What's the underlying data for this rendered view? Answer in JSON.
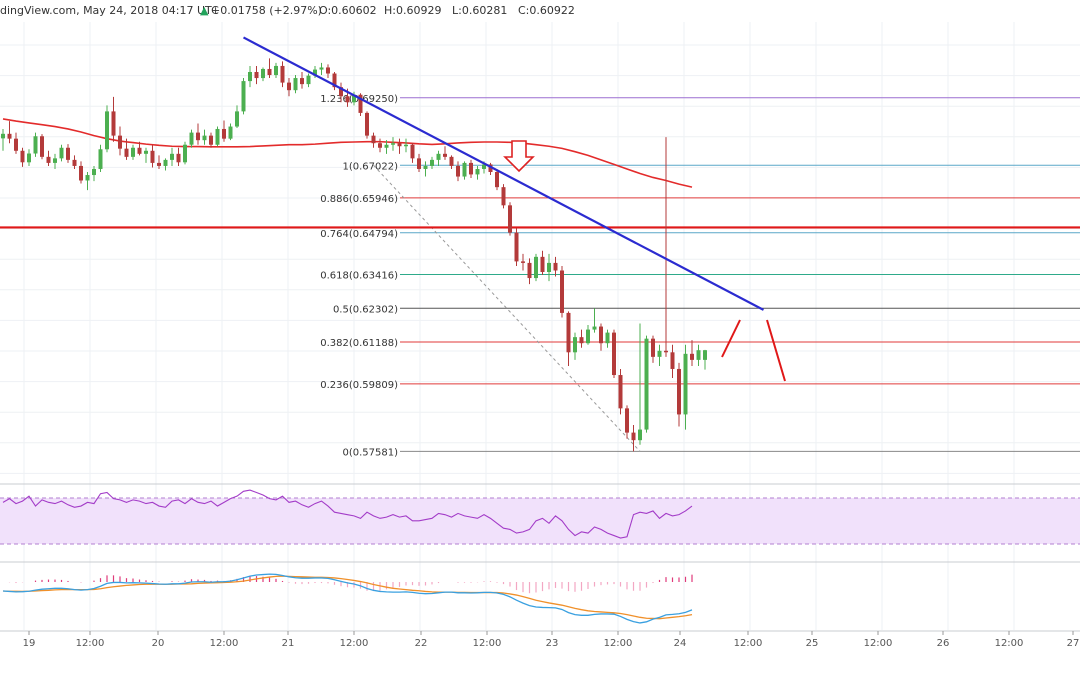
{
  "header": {
    "source": "dingView.com, May 24, 2018 04:17 UTC",
    "change": "+0.01758 (+2.97%)",
    "open": "O:0.60602",
    "high": "H:0.60929",
    "low": "L:0.60281",
    "close": "C:0.60922"
  },
  "colors": {
    "up_candle": "#4caf50",
    "down_candle": "#b33a3a",
    "ma": "#e32b2b",
    "trendline": "#2b2bd0",
    "support": "#e01818",
    "rsi": "#a33cc8",
    "rsi_band": "#f1e1fb",
    "macd": "#3aa0e0",
    "signal": "#f0902a",
    "histogram": "#e03a7a"
  },
  "chart_data": {
    "type": "candlestick",
    "ylim": [
      0.5657,
      0.7175
    ],
    "x_tick_labels": [
      "19",
      "12:00",
      "20",
      "12:00",
      "21",
      "12:00",
      "22",
      "12:00",
      "23",
      "12:00",
      "24",
      "12:00",
      "25",
      "12:00",
      "26",
      "12:00",
      "27"
    ],
    "candles": [
      [
        0.6791,
        0.6822,
        0.675,
        0.6806
      ],
      [
        0.6806,
        0.6848,
        0.6775,
        0.679
      ],
      [
        0.679,
        0.681,
        0.674,
        0.675
      ],
      [
        0.675,
        0.676,
        0.6697,
        0.6712
      ],
      [
        0.6712,
        0.6755,
        0.67,
        0.6741
      ],
      [
        0.6741,
        0.681,
        0.673,
        0.6798
      ],
      [
        0.6798,
        0.6805,
        0.6722,
        0.673
      ],
      [
        0.673,
        0.675,
        0.67,
        0.671
      ],
      [
        0.671,
        0.674,
        0.669,
        0.6725
      ],
      [
        0.6725,
        0.677,
        0.6715,
        0.676
      ],
      [
        0.676,
        0.6772,
        0.671,
        0.672
      ],
      [
        0.672,
        0.6735,
        0.669,
        0.67
      ],
      [
        0.67,
        0.6715,
        0.6642,
        0.6652
      ],
      [
        0.6652,
        0.668,
        0.662,
        0.667
      ],
      [
        0.667,
        0.67,
        0.665,
        0.669
      ],
      [
        0.669,
        0.677,
        0.668,
        0.6755
      ],
      [
        0.6755,
        0.69,
        0.6745,
        0.688
      ],
      [
        0.688,
        0.6928,
        0.678,
        0.68
      ],
      [
        0.68,
        0.683,
        0.6735,
        0.6757
      ],
      [
        0.6757,
        0.679,
        0.672,
        0.673
      ],
      [
        0.673,
        0.677,
        0.672,
        0.676
      ],
      [
        0.676,
        0.678,
        0.6735,
        0.674
      ],
      [
        0.674,
        0.676,
        0.671,
        0.675
      ],
      [
        0.675,
        0.677,
        0.6695,
        0.671
      ],
      [
        0.671,
        0.6735,
        0.669,
        0.67
      ],
      [
        0.67,
        0.6725,
        0.6685,
        0.672
      ],
      [
        0.672,
        0.676,
        0.67,
        0.674
      ],
      [
        0.674,
        0.676,
        0.67,
        0.6712
      ],
      [
        0.6712,
        0.678,
        0.6705,
        0.677
      ],
      [
        0.677,
        0.682,
        0.676,
        0.681
      ],
      [
        0.681,
        0.684,
        0.677,
        0.6785
      ],
      [
        0.6785,
        0.682,
        0.677,
        0.68
      ],
      [
        0.68,
        0.681,
        0.676,
        0.677
      ],
      [
        0.677,
        0.683,
        0.6765,
        0.6822
      ],
      [
        0.6822,
        0.685,
        0.678,
        0.679
      ],
      [
        0.679,
        0.684,
        0.6785,
        0.683
      ],
      [
        0.683,
        0.69,
        0.6825,
        0.688
      ],
      [
        0.688,
        0.699,
        0.687,
        0.698
      ],
      [
        0.698,
        0.703,
        0.696,
        0.701
      ],
      [
        0.701,
        0.703,
        0.697,
        0.699
      ],
      [
        0.699,
        0.7025,
        0.698,
        0.702
      ],
      [
        0.702,
        0.7055,
        0.699,
        0.7
      ],
      [
        0.7,
        0.704,
        0.699,
        0.703
      ],
      [
        0.703,
        0.7045,
        0.696,
        0.6975
      ],
      [
        0.6975,
        0.699,
        0.693,
        0.695
      ],
      [
        0.695,
        0.7,
        0.694,
        0.699
      ],
      [
        0.699,
        0.701,
        0.6955,
        0.697
      ],
      [
        0.697,
        0.7005,
        0.696,
        0.6998
      ],
      [
        0.6998,
        0.703,
        0.699,
        0.7018
      ],
      [
        0.7018,
        0.704,
        0.7,
        0.7025
      ],
      [
        0.7025,
        0.7035,
        0.699,
        0.7005
      ],
      [
        0.7005,
        0.701,
        0.695,
        0.696
      ],
      [
        0.696,
        0.6975,
        0.691,
        0.693
      ],
      [
        0.693,
        0.6955,
        0.6895,
        0.691
      ],
      [
        0.691,
        0.6945,
        0.69,
        0.6935
      ],
      [
        0.6935,
        0.694,
        0.6865,
        0.6875
      ],
      [
        0.6875,
        0.688,
        0.679,
        0.68
      ],
      [
        0.68,
        0.681,
        0.676,
        0.6775
      ],
      [
        0.6775,
        0.679,
        0.6745,
        0.676
      ],
      [
        0.676,
        0.6785,
        0.674,
        0.677
      ],
      [
        0.677,
        0.6795,
        0.675,
        0.6775
      ],
      [
        0.6775,
        0.679,
        0.674,
        0.6765
      ],
      [
        0.6765,
        0.679,
        0.6745,
        0.677
      ],
      [
        0.677,
        0.6775,
        0.671,
        0.6725
      ],
      [
        0.6725,
        0.674,
        0.668,
        0.669
      ],
      [
        0.669,
        0.6715,
        0.6665,
        0.67
      ],
      [
        0.67,
        0.673,
        0.669,
        0.672
      ],
      [
        0.672,
        0.675,
        0.67,
        0.674
      ],
      [
        0.674,
        0.6765,
        0.672,
        0.673
      ],
      [
        0.673,
        0.6735,
        0.669,
        0.67
      ],
      [
        0.67,
        0.6715,
        0.665,
        0.6665
      ],
      [
        0.6665,
        0.6715,
        0.6655,
        0.671
      ],
      [
        0.671,
        0.672,
        0.666,
        0.6672
      ],
      [
        0.6672,
        0.67,
        0.6655,
        0.669
      ],
      [
        0.669,
        0.6715,
        0.6675,
        0.6705
      ],
      [
        0.6705,
        0.671,
        0.667,
        0.668
      ],
      [
        0.668,
        0.669,
        0.662,
        0.663
      ],
      [
        0.663,
        0.664,
        0.656,
        0.657
      ],
      [
        0.657,
        0.658,
        0.647,
        0.648
      ],
      [
        0.648,
        0.6495,
        0.637,
        0.6385
      ],
      [
        0.6385,
        0.641,
        0.6355,
        0.638
      ],
      [
        0.638,
        0.6395,
        0.631,
        0.633
      ],
      [
        0.633,
        0.641,
        0.632,
        0.64
      ],
      [
        0.64,
        0.642,
        0.634,
        0.635
      ],
      [
        0.635,
        0.641,
        0.632,
        0.638
      ],
      [
        0.638,
        0.64,
        0.6335,
        0.6355
      ],
      [
        0.6355,
        0.637,
        0.62,
        0.6215
      ],
      [
        0.6215,
        0.622,
        0.604,
        0.6085
      ],
      [
        0.6085,
        0.615,
        0.606,
        0.6135
      ],
      [
        0.6135,
        0.616,
        0.61,
        0.6115
      ],
      [
        0.6115,
        0.6175,
        0.611,
        0.616
      ],
      [
        0.616,
        0.623,
        0.615,
        0.617
      ],
      [
        0.617,
        0.618,
        0.609,
        0.6115
      ],
      [
        0.6115,
        0.616,
        0.61,
        0.615
      ],
      [
        0.615,
        0.616,
        0.6,
        0.601
      ],
      [
        0.601,
        0.603,
        0.588,
        0.59
      ],
      [
        0.59,
        0.591,
        0.58,
        0.582
      ],
      [
        0.582,
        0.5845,
        0.5758,
        0.5795
      ],
      [
        0.5795,
        0.618,
        0.578,
        0.583
      ],
      [
        0.583,
        0.614,
        0.582,
        0.613
      ],
      [
        0.613,
        0.614,
        0.605,
        0.607
      ],
      [
        0.607,
        0.611,
        0.604,
        0.609
      ],
      [
        0.609,
        0.6795,
        0.607,
        0.6085
      ],
      [
        0.6085,
        0.611,
        0.6,
        0.603
      ],
      [
        0.603,
        0.605,
        0.584,
        0.588
      ],
      [
        0.588,
        0.611,
        0.583,
        0.608
      ],
      [
        0.608,
        0.6125,
        0.604,
        0.606
      ],
      [
        0.606,
        0.611,
        0.604,
        0.6092
      ],
      [
        0.606,
        0.6093,
        0.6028,
        0.6092
      ]
    ],
    "moving_average": [
      0.6855,
      0.6848,
      0.6842,
      0.6836,
      0.683,
      0.6822,
      0.6812,
      0.68,
      0.679,
      0.6782,
      0.6777,
      0.6772,
      0.6768,
      0.6765,
      0.6764,
      0.6764,
      0.6763,
      0.6763,
      0.6763,
      0.6764,
      0.6766,
      0.6768,
      0.677,
      0.677,
      0.6772,
      0.6775,
      0.6778,
      0.6779,
      0.678,
      0.678,
      0.6778,
      0.6776,
      0.6773,
      0.6771,
      0.6773,
      0.6776,
      0.6778,
      0.6779,
      0.6779,
      0.6778,
      0.6775,
      0.677,
      0.6765,
      0.6758,
      0.6747,
      0.6735,
      0.672,
      0.6705,
      0.669,
      0.6675,
      0.6662,
      0.6652,
      0.664,
      0.663
    ],
    "trendline": {
      "start": [
        0.7124,
        37
      ],
      "end": [
        0.6225,
        117
      ]
    },
    "support_level": 0.6497,
    "fibonacci": [
      {
        "label": "1.236(0.69250)",
        "value": 0.6925,
        "color": "#9b6fd1"
      },
      {
        "label": "1(0.67022)",
        "value": 0.67022,
        "color": "#5aa7c8"
      },
      {
        "label": "0.886(0.65946)",
        "value": 0.65946,
        "color": "#e03a3a"
      },
      {
        "label": "0.764(0.64794)",
        "value": 0.64794,
        "color": "#5aa7c8"
      },
      {
        "label": "0.618(0.63416)",
        "value": 0.63416,
        "color": "#2eaa8a"
      },
      {
        "label": "0.5(0.62302)",
        "value": 0.62302,
        "color": "#555555"
      },
      {
        "label": "0.382(0.61188)",
        "value": 0.61188,
        "color": "#e03a3a"
      },
      {
        "label": "0.236(0.59809)",
        "value": 0.59809,
        "color": "#e03a3a"
      },
      {
        "label": "0(0.57581)",
        "value": 0.57581,
        "color": "#888888"
      }
    ],
    "rsi": [
      55,
      58,
      54,
      56,
      60,
      52,
      57,
      55,
      54,
      56,
      53,
      51,
      52,
      55,
      54,
      62,
      63,
      58,
      57,
      55,
      57,
      56,
      54,
      55,
      52,
      51,
      56,
      57,
      54,
      58,
      55,
      54,
      56,
      52,
      55,
      58,
      60,
      64,
      65,
      63,
      61,
      58,
      57,
      60,
      55,
      56,
      53,
      51,
      54,
      56,
      52,
      47,
      46,
      45,
      44,
      42,
      47,
      44,
      42,
      43,
      45,
      43,
      44,
      40,
      40,
      41,
      42,
      46,
      45,
      43,
      46,
      44,
      43,
      42,
      45,
      42,
      38,
      34,
      33,
      30,
      31,
      33,
      40,
      42,
      38,
      44,
      40,
      33,
      28,
      31,
      30,
      35,
      33,
      30,
      28,
      26,
      27,
      45,
      47,
      46,
      48,
      42,
      46,
      44,
      45,
      48,
      52
    ],
    "macd": [
      -4.0,
      -4.2,
      -4.4,
      -4.3,
      -4.1,
      -3.6,
      -3.2,
      -3.0,
      -2.8,
      -2.8,
      -3.0,
      -3.4,
      -3.6,
      -3.4,
      -2.9,
      -1.9,
      -0.6,
      -0.2,
      -0.2,
      -0.4,
      -0.3,
      -0.4,
      -0.5,
      -0.7,
      -0.9,
      -1.0,
      -0.8,
      -0.8,
      -0.5,
      0.0,
      0.1,
      0.1,
      -0.1,
      0.1,
      0.1,
      0.4,
      1.0,
      1.8,
      2.6,
      3.1,
      3.3,
      3.5,
      3.4,
      2.9,
      2.3,
      1.9,
      1.7,
      1.7,
      1.8,
      1.8,
      1.6,
      1.0,
      0.3,
      -0.4,
      -0.9,
      -1.7,
      -2.9,
      -3.7,
      -4.2,
      -4.4,
      -4.5,
      -4.5,
      -4.4,
      -4.6,
      -5.0,
      -5.2,
      -5.1,
      -4.8,
      -4.5,
      -4.5,
      -4.8,
      -4.8,
      -4.9,
      -4.8,
      -4.6,
      -4.6,
      -4.9,
      -5.5,
      -6.6,
      -8.1,
      -9.4,
      -10.5,
      -11.1,
      -11.3,
      -11.4,
      -11.5,
      -12.2,
      -13.6,
      -14.5,
      -14.8,
      -14.8,
      -14.4,
      -14.2,
      -14.2,
      -14.3,
      -15.3,
      -16.6,
      -17.6,
      -18.2,
      -17.7,
      -16.5,
      -15.7,
      -14.6,
      -14.4,
      -14.1,
      -13.5,
      -12.4
    ],
    "signal": [
      -4.0,
      -4.1,
      -4.1,
      -4.2,
      -4.1,
      -4.0,
      -3.8,
      -3.7,
      -3.5,
      -3.4,
      -3.3,
      -3.4,
      -3.4,
      -3.4,
      -3.3,
      -3.0,
      -2.5,
      -2.1,
      -1.8,
      -1.5,
      -1.3,
      -1.1,
      -1.0,
      -1.0,
      -1.0,
      -1.0,
      -1.0,
      -0.9,
      -0.9,
      -0.8,
      -0.6,
      -0.5,
      -0.4,
      -0.3,
      -0.2,
      -0.1,
      0.1,
      0.4,
      0.9,
      1.4,
      1.8,
      2.2,
      2.5,
      2.6,
      2.5,
      2.4,
      2.3,
      2.2,
      2.1,
      2.1,
      2.0,
      1.8,
      1.5,
      1.1,
      0.7,
      0.2,
      -0.4,
      -1.1,
      -1.7,
      -2.3,
      -2.8,
      -3.1,
      -3.4,
      -3.7,
      -3.9,
      -4.2,
      -4.4,
      -4.5,
      -4.5,
      -4.5,
      -4.6,
      -4.6,
      -4.7,
      -4.7,
      -4.7,
      -4.7,
      -4.7,
      -4.9,
      -5.3,
      -5.8,
      -6.5,
      -7.3,
      -8.1,
      -8.7,
      -9.3,
      -9.8,
      -10.3,
      -11.0,
      -11.7,
      -12.3,
      -12.8,
      -13.1,
      -13.3,
      -13.5,
      -13.7,
      -14.0,
      -14.5,
      -15.1,
      -15.7,
      -16.1,
      -16.2,
      -16.3,
      -16.0,
      -15.7,
      -15.4,
      -15.0,
      -14.5
    ]
  }
}
